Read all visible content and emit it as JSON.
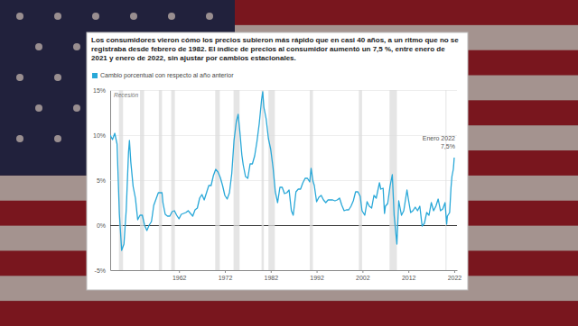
{
  "chart_data": {
    "type": "line",
    "title": "Los consumidores vieron cómo los precios subieron más rápido que en casi 40 años, a un ritmo que no se registraba desde febrero de 1982. El índice de precios al consumidor aumentó un 7,5 %, entre enero de 2021 y enero de 2022, sin ajustar por cambios estacionales.",
    "legend": "top-left",
    "recession_label": "Recesión",
    "x": [
      1947.0,
      1947.5,
      1948.0,
      1948.5,
      1949.0,
      1949.5,
      1950.0,
      1950.5,
      1951.0,
      1951.2,
      1951.5,
      1952.0,
      1952.5,
      1953.0,
      1953.5,
      1954.0,
      1954.5,
      1955.0,
      1955.5,
      1956.0,
      1956.5,
      1957.0,
      1957.5,
      1958.0,
      1958.3,
      1958.5,
      1959.0,
      1959.5,
      1960.0,
      1960.5,
      1961.0,
      1961.5,
      1962.0,
      1962.5,
      1963.0,
      1963.5,
      1964.0,
      1964.5,
      1965.0,
      1965.5,
      1966.0,
      1966.5,
      1967.0,
      1967.5,
      1968.0,
      1968.5,
      1969.0,
      1969.5,
      1970.0,
      1970.5,
      1971.0,
      1971.5,
      1972.0,
      1972.5,
      1973.0,
      1973.5,
      1974.0,
      1974.5,
      1974.9,
      1975.3,
      1975.7,
      1976.0,
      1976.5,
      1977.0,
      1977.5,
      1978.0,
      1978.5,
      1979.0,
      1979.5,
      1980.0,
      1980.25,
      1980.5,
      1981.0,
      1981.5,
      1982.0,
      1982.5,
      1983.0,
      1983.5,
      1984.0,
      1984.5,
      1985.0,
      1985.5,
      1986.0,
      1986.5,
      1986.9,
      1987.5,
      1988.0,
      1988.5,
      1989.0,
      1989.5,
      1990.0,
      1990.5,
      1990.8,
      1991.2,
      1991.5,
      1992.0,
      1992.5,
      1993.0,
      1993.5,
      1994.0,
      1994.5,
      1995.0,
      1995.5,
      1996.0,
      1996.5,
      1997.0,
      1997.5,
      1998.0,
      1998.5,
      1999.0,
      1999.5,
      2000.0,
      2000.5,
      2001.0,
      2001.5,
      2001.9,
      2002.5,
      2003.0,
      2003.5,
      2004.0,
      2004.5,
      2005.0,
      2005.7,
      2006.0,
      2006.5,
      2006.8,
      2007.0,
      2007.5,
      2008.0,
      2008.5,
      2008.9,
      2009.5,
      2009.9,
      2010.5,
      2011.0,
      2011.7,
      2012.0,
      2012.5,
      2013.0,
      2013.5,
      2014.0,
      2014.5,
      2015.0,
      2015.5,
      2016.0,
      2016.5,
      2017.0,
      2017.5,
      2018.0,
      2018.5,
      2019.0,
      2019.5,
      2020.0,
      2020.35,
      2020.5,
      2021.0,
      2021.3,
      2021.5,
      2021.8,
      2021.9,
      2022.0
    ],
    "series": [
      {
        "name": "Cambio porcentual con respecto al año anterior",
        "color": "#29a8d8",
        "values": [
          10.0,
          9.5,
          10.2,
          9.0,
          1.3,
          -2.8,
          -2.1,
          1.7,
          8.1,
          9.4,
          7.0,
          4.3,
          3.0,
          0.6,
          1.1,
          1.1,
          0.0,
          -0.6,
          0.0,
          0.4,
          2.2,
          2.9,
          3.6,
          3.6,
          3.6,
          2.5,
          1.2,
          1.0,
          1.0,
          1.5,
          1.6,
          1.1,
          0.7,
          1.2,
          1.3,
          1.4,
          1.6,
          1.3,
          1.0,
          1.7,
          1.9,
          3.0,
          3.4,
          2.8,
          3.6,
          4.4,
          4.4,
          5.5,
          6.2,
          5.9,
          5.3,
          4.4,
          3.3,
          2.9,
          3.6,
          5.7,
          9.4,
          11.5,
          12.3,
          10.2,
          7.8,
          6.7,
          5.4,
          5.2,
          6.8,
          6.8,
          7.7,
          9.3,
          11.3,
          13.9,
          14.8,
          13.1,
          11.8,
          9.6,
          8.4,
          6.4,
          3.7,
          2.5,
          4.2,
          4.2,
          3.5,
          3.6,
          3.9,
          1.6,
          1.1,
          3.7,
          4.0,
          4.0,
          4.7,
          5.2,
          5.2,
          4.8,
          6.3,
          4.9,
          4.4,
          2.6,
          3.1,
          3.3,
          2.8,
          2.5,
          2.8,
          2.8,
          2.8,
          2.7,
          2.8,
          3.0,
          2.2,
          1.6,
          1.7,
          1.7,
          2.1,
          2.7,
          3.7,
          3.7,
          3.2,
          1.6,
          1.1,
          2.6,
          2.1,
          1.9,
          3.3,
          3.0,
          4.7,
          4.0,
          4.1,
          1.3,
          2.1,
          2.4,
          4.3,
          5.6,
          1.1,
          -2.1,
          2.7,
          1.1,
          1.6,
          3.9,
          2.9,
          1.4,
          1.6,
          2.0,
          1.6,
          2.1,
          -0.1,
          0.2,
          1.4,
          1.1,
          2.5,
          1.6,
          2.1,
          2.9,
          1.6,
          1.8,
          2.5,
          0.1,
          1.0,
          1.4,
          4.2,
          5.4,
          6.2,
          6.8,
          7.5
        ]
      }
    ],
    "xlim": [
      1947,
      2022.6
    ],
    "ylim": [
      -5,
      15
    ],
    "xticks": [
      1962,
      1972,
      1982,
      1992,
      2002,
      2012,
      2022
    ],
    "yticks": [
      {
        "value": -5,
        "label": "-5%"
      },
      {
        "value": 0,
        "label": "0%"
      },
      {
        "value": 5,
        "label": "5%"
      },
      {
        "value": 10,
        "label": "10%"
      },
      {
        "value": 15,
        "label": "15%"
      }
    ],
    "grid": true,
    "recessions": [
      [
        1948.9,
        1949.8
      ],
      [
        1953.5,
        1954.4
      ],
      [
        1957.6,
        1958.3
      ],
      [
        1960.3,
        1961.1
      ],
      [
        1969.9,
        1970.9
      ],
      [
        1973.9,
        1975.2
      ],
      [
        1980.0,
        1980.5
      ],
      [
        1981.5,
        1982.9
      ],
      [
        1990.5,
        1991.2
      ],
      [
        2001.2,
        2001.9
      ],
      [
        2007.9,
        2009.5
      ],
      [
        2020.1,
        2020.3
      ]
    ],
    "annotation": {
      "x": 2022.0,
      "y": 7.5,
      "label": "Enero 2022",
      "value_label": "7,5%"
    }
  }
}
